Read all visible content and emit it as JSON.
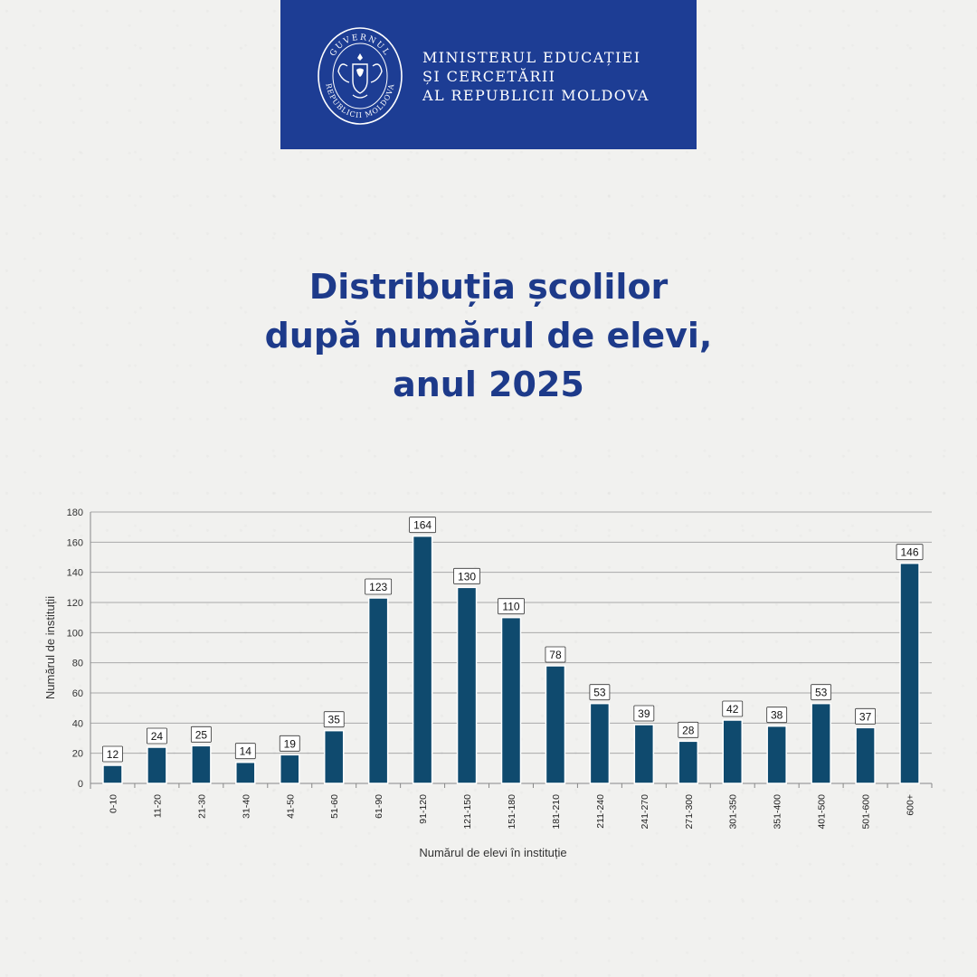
{
  "header": {
    "seal_text_top": "GUVERNUL",
    "seal_text_bottom": "REPUBLICII MOLDOVA",
    "ministry_lines": [
      "MINISTERUL EDUCAȚIEI",
      "ȘI CERCETĂRII",
      "AL REPUBLICII MOLDOVA"
    ],
    "background_color": "#1d3d94"
  },
  "title_lines": [
    "Distribuția școlilor",
    "după numărul de elevi,",
    "anul 2025"
  ],
  "chart_data": {
    "type": "bar",
    "title": "Distribuția școlilor după numărul de elevi, anul 2025",
    "xlabel": "Numărul de elevi în instituție",
    "ylabel": "Numărul de instituții",
    "categories": [
      "0-10",
      "11-20",
      "21-30",
      "31-40",
      "41-50",
      "51-60",
      "61-90",
      "91-120",
      "121-150",
      "151-180",
      "181-210",
      "211-240",
      "241-270",
      "271-300",
      "301-350",
      "351-400",
      "401-500",
      "501-600",
      "600+"
    ],
    "values": [
      12,
      24,
      25,
      14,
      19,
      35,
      123,
      164,
      130,
      110,
      78,
      53,
      39,
      28,
      42,
      38,
      53,
      37,
      146
    ],
    "ylim": [
      0,
      180
    ],
    "yticks": [
      0,
      20,
      40,
      60,
      80,
      100,
      120,
      140,
      160,
      180
    ],
    "grid": true,
    "bar_color": "#0f4a6e",
    "data_labels": true,
    "legend": "none"
  }
}
